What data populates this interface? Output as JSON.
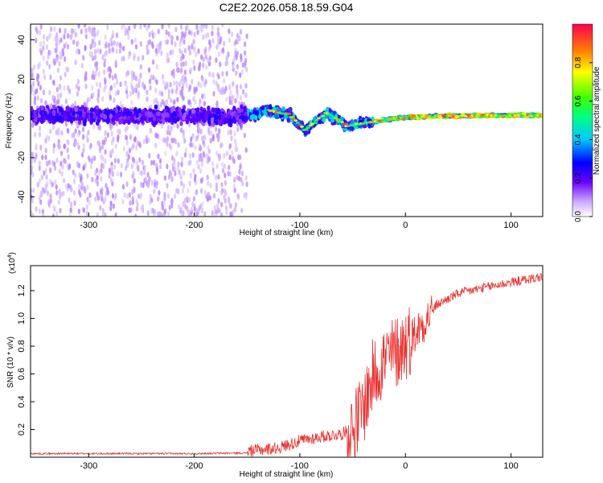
{
  "title": "C2E2.2026.058.18.59.G04",
  "chart_data": [
    {
      "type": "heatmap",
      "xlabel": "Height of straight line (km)",
      "ylabel": "Frequency (Hz)",
      "xlim": [
        -355,
        130
      ],
      "ylim": [
        -50,
        48
      ],
      "xticks": [
        -300,
        -200,
        -100,
        0,
        100
      ],
      "yticks": [
        -40,
        -20,
        0,
        20,
        40
      ],
      "colorbar": {
        "label": "Normalized spectral amplitude",
        "range": [
          0.0,
          1.0
        ],
        "ticks": [
          0.0,
          0.2,
          0.4,
          0.6,
          0.8
        ],
        "colormap": "rainbow"
      },
      "ridge": {
        "description": "signal concentrated near 0 Hz, noisy spread below -150 km",
        "points": [
          {
            "x": -355,
            "y": 2
          },
          {
            "x": -150,
            "y": 1
          },
          {
            "x": -130,
            "y": 4
          },
          {
            "x": -110,
            "y": 2
          },
          {
            "x": -95,
            "y": -6
          },
          {
            "x": -75,
            "y": 3
          },
          {
            "x": -55,
            "y": -4
          },
          {
            "x": -35,
            "y": -2
          },
          {
            "x": -10,
            "y": 0
          },
          {
            "x": 20,
            "y": 1
          },
          {
            "x": 80,
            "y": 1.5
          },
          {
            "x": 130,
            "y": 1.5
          }
        ]
      }
    },
    {
      "type": "line",
      "xlabel": "Height of straight line (km)",
      "ylabel": "SNR (10 * v/v)",
      "y_multiplier": "(x10",
      "y_exponent": "4",
      "y_multiplier_close": ")",
      "xlim": [
        -355,
        130
      ],
      "ylim": [
        0,
        1.38
      ],
      "xticks": [
        -300,
        -200,
        -100,
        0,
        100
      ],
      "yticks": [
        0.2,
        0.4,
        0.6,
        0.8,
        1.0,
        1.2
      ],
      "color": "#e8302e",
      "series": [
        {
          "name": "SNR",
          "x": [
            -355,
            -300,
            -250,
            -200,
            -150,
            -120,
            -100,
            -80,
            -60,
            -50,
            -40,
            -30,
            -20,
            -10,
            0,
            10,
            20,
            30,
            50,
            80,
            100,
            130
          ],
          "values": [
            0.02,
            0.02,
            0.02,
            0.02,
            0.025,
            0.05,
            0.1,
            0.13,
            0.15,
            0.2,
            0.35,
            0.6,
            0.7,
            0.75,
            0.82,
            0.9,
            1.0,
            1.1,
            1.18,
            1.23,
            1.26,
            1.3
          ]
        }
      ]
    }
  ]
}
